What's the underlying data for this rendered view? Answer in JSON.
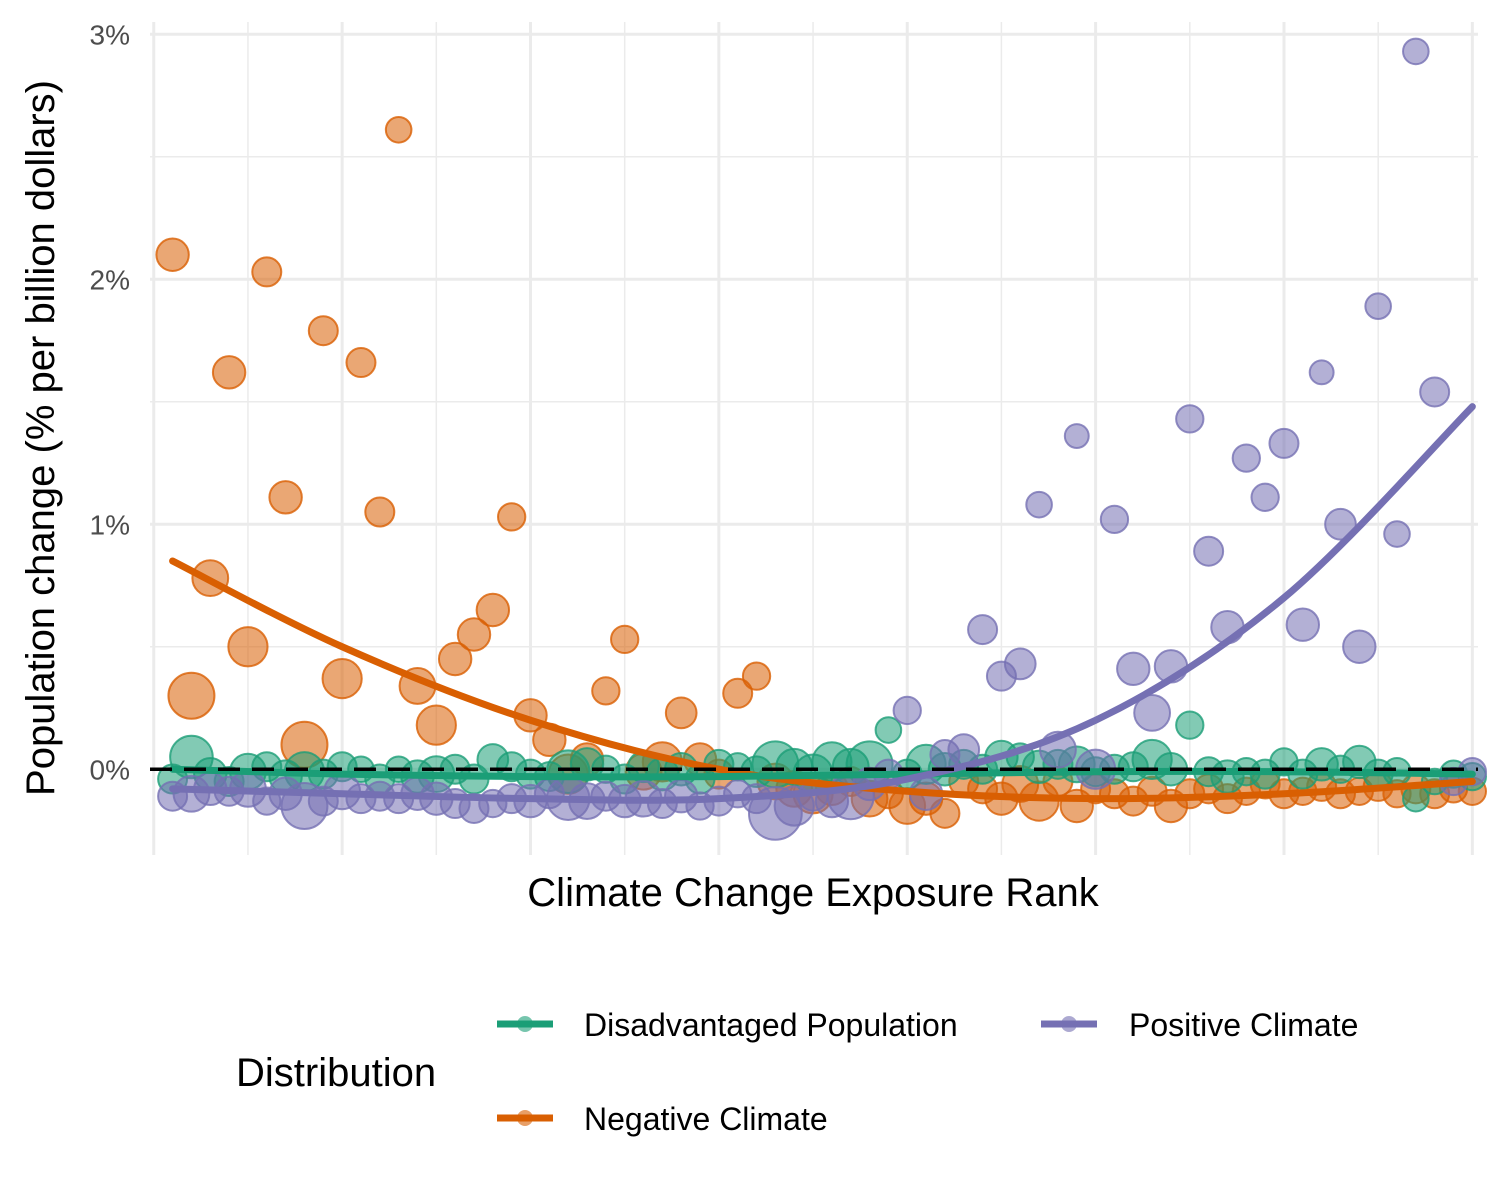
{
  "chart_data": {
    "type": "scatter",
    "title": "",
    "xlabel": "Climate Change Exposure Rank",
    "ylabel": "Population change (% per billion dollars)",
    "ylim": [
      -0.35,
      3.05
    ],
    "xlim": [
      -0.2,
      70.3
    ],
    "grid": true,
    "y_ticks": [
      0,
      1,
      2,
      3
    ],
    "y_tick_labels": [
      "0%",
      "1%",
      "2%",
      "3%"
    ],
    "reference_line": {
      "y": 0,
      "style": "dashed",
      "color": "#000000"
    },
    "legend": {
      "title": "Distribution",
      "position": "bottom",
      "entries": [
        {
          "label": "Disadvantaged Population",
          "color": "#1b9e77"
        },
        {
          "label": "Positive Climate",
          "color": "#7570b3"
        },
        {
          "label": "Negative Climate",
          "color": "#d95f02"
        }
      ]
    },
    "series": [
      {
        "name": "Negative Climate",
        "color": "#d95f02",
        "fit_curve": {
          "x": [
            1,
            10,
            20,
            30,
            40,
            50,
            60,
            70
          ],
          "y": [
            0.85,
            0.5,
            0.2,
            0.0,
            -0.09,
            -0.12,
            -0.1,
            -0.05
          ]
        },
        "points": [
          [
            1,
            2.1,
            0.6
          ],
          [
            3,
            0.78,
            0.7
          ],
          [
            4,
            1.62,
            0.6
          ],
          [
            5,
            0.5,
            0.8
          ],
          [
            6,
            2.03,
            0.5
          ],
          [
            2,
            0.3,
            1.0
          ],
          [
            7,
            1.11,
            0.6
          ],
          [
            8,
            0.1,
            1.0
          ],
          [
            9,
            1.79,
            0.5
          ],
          [
            10,
            0.37,
            0.8
          ],
          [
            11,
            1.66,
            0.5
          ],
          [
            12,
            1.05,
            0.5
          ],
          [
            13,
            2.61,
            0.4
          ],
          [
            14,
            0.34,
            0.7
          ],
          [
            15,
            0.18,
            0.8
          ],
          [
            16,
            0.45,
            0.6
          ],
          [
            17,
            0.55,
            0.6
          ],
          [
            18,
            0.65,
            0.6
          ],
          [
            19,
            1.03,
            0.45
          ],
          [
            20,
            0.22,
            0.6
          ],
          [
            21,
            0.12,
            0.6
          ],
          [
            22,
            -0.02,
            0.8
          ],
          [
            23,
            0.04,
            0.6
          ],
          [
            24,
            0.32,
            0.45
          ],
          [
            25,
            0.53,
            0.45
          ],
          [
            26,
            -0.01,
            0.7
          ],
          [
            27,
            0.03,
            0.8
          ],
          [
            28,
            0.23,
            0.55
          ],
          [
            29,
            0.04,
            0.6
          ],
          [
            30,
            -0.02,
            0.5
          ],
          [
            31,
            0.31,
            0.5
          ],
          [
            32,
            0.38,
            0.45
          ],
          [
            33,
            -0.05,
            0.7
          ],
          [
            34,
            -0.08,
            0.7
          ],
          [
            35,
            -0.1,
            0.8
          ],
          [
            36,
            -0.08,
            0.6
          ],
          [
            37,
            -0.05,
            0.5
          ],
          [
            38,
            -0.12,
            0.7
          ],
          [
            39,
            -0.1,
            0.5
          ],
          [
            40,
            -0.15,
            0.7
          ],
          [
            41,
            -0.12,
            0.6
          ],
          [
            42,
            -0.18,
            0.5
          ],
          [
            43,
            -0.05,
            0.5
          ],
          [
            44,
            -0.08,
            0.5
          ],
          [
            45,
            -0.12,
            0.6
          ],
          [
            46,
            -0.06,
            0.7
          ],
          [
            47,
            -0.13,
            0.8
          ],
          [
            48,
            -0.05,
            0.5
          ],
          [
            49,
            -0.15,
            0.6
          ],
          [
            50,
            -0.08,
            0.5
          ],
          [
            51,
            -0.1,
            0.5
          ],
          [
            52,
            -0.13,
            0.5
          ],
          [
            53,
            -0.09,
            0.5
          ],
          [
            54,
            -0.15,
            0.6
          ],
          [
            55,
            -0.1,
            0.5
          ],
          [
            56,
            -0.08,
            0.5
          ],
          [
            57,
            -0.12,
            0.5
          ],
          [
            58,
            -0.09,
            0.45
          ],
          [
            59,
            -0.06,
            0.5
          ],
          [
            60,
            -0.1,
            0.5
          ],
          [
            61,
            -0.09,
            0.45
          ],
          [
            62,
            -0.07,
            0.5
          ],
          [
            63,
            -0.1,
            0.5
          ],
          [
            64,
            -0.09,
            0.45
          ],
          [
            65,
            -0.07,
            0.5
          ],
          [
            66,
            -0.1,
            0.45
          ],
          [
            67,
            -0.08,
            0.5
          ],
          [
            68,
            -0.1,
            0.5
          ],
          [
            69,
            -0.08,
            0.45
          ],
          [
            70,
            -0.09,
            0.45
          ]
        ]
      },
      {
        "name": "Disadvantaged Population",
        "color": "#1b9e77",
        "fit_curve": {
          "x": [
            1,
            10,
            20,
            30,
            40,
            50,
            60,
            70
          ],
          "y": [
            0.0,
            -0.02,
            -0.03,
            -0.03,
            -0.02,
            -0.01,
            -0.01,
            -0.02
          ]
        },
        "points": [
          [
            1,
            -0.04,
            0.5
          ],
          [
            2,
            0.05,
            0.9
          ],
          [
            3,
            -0.02,
            0.6
          ],
          [
            4,
            -0.05,
            0.5
          ],
          [
            5,
            -0.01,
            0.7
          ],
          [
            6,
            0.01,
            0.5
          ],
          [
            7,
            -0.03,
            0.6
          ],
          [
            8,
            -0.01,
            0.8
          ],
          [
            9,
            -0.02,
            0.5
          ],
          [
            10,
            0.01,
            0.5
          ],
          [
            11,
            0.0,
            0.4
          ],
          [
            12,
            -0.04,
            0.5
          ],
          [
            13,
            0.0,
            0.4
          ],
          [
            14,
            -0.03,
            0.6
          ],
          [
            15,
            -0.02,
            0.7
          ],
          [
            16,
            0.0,
            0.5
          ],
          [
            17,
            -0.04,
            0.5
          ],
          [
            18,
            0.04,
            0.55
          ],
          [
            19,
            0.01,
            0.5
          ],
          [
            20,
            -0.02,
            0.5
          ],
          [
            21,
            -0.03,
            0.5
          ],
          [
            22,
            -0.01,
            0.9
          ],
          [
            23,
            0.02,
            0.6
          ],
          [
            24,
            0.0,
            0.45
          ],
          [
            25,
            -0.04,
            0.5
          ],
          [
            26,
            0.01,
            0.55
          ],
          [
            27,
            -0.02,
            0.6
          ],
          [
            28,
            0.0,
            0.6
          ],
          [
            29,
            -0.04,
            0.5
          ],
          [
            30,
            0.02,
            0.5
          ],
          [
            31,
            0.01,
            0.45
          ],
          [
            32,
            -0.01,
            0.55
          ],
          [
            33,
            0.02,
            1.0
          ],
          [
            34,
            0.01,
            0.7
          ],
          [
            35,
            -0.02,
            0.8
          ],
          [
            36,
            0.03,
            0.8
          ],
          [
            37,
            0.01,
            0.7
          ],
          [
            38,
            0.02,
            1.0
          ],
          [
            39,
            0.16,
            0.4
          ],
          [
            40,
            -0.02,
            0.5
          ],
          [
            41,
            0.02,
            0.8
          ],
          [
            42,
            0.0,
            0.6
          ],
          [
            43,
            0.02,
            0.5
          ],
          [
            44,
            0.0,
            0.5
          ],
          [
            45,
            0.05,
            0.6
          ],
          [
            46,
            0.05,
            0.45
          ],
          [
            47,
            0.01,
            0.6
          ],
          [
            48,
            0.02,
            0.5
          ],
          [
            49,
            0.02,
            0.7
          ],
          [
            50,
            -0.01,
            0.5
          ],
          [
            51,
            0.0,
            0.5
          ],
          [
            52,
            0.01,
            0.5
          ],
          [
            53,
            0.04,
            0.8
          ],
          [
            54,
            0.0,
            0.6
          ],
          [
            55,
            0.18,
            0.45
          ],
          [
            56,
            -0.01,
            0.5
          ],
          [
            57,
            -0.03,
            0.6
          ],
          [
            58,
            -0.01,
            0.45
          ],
          [
            59,
            -0.02,
            0.5
          ],
          [
            60,
            0.03,
            0.45
          ],
          [
            61,
            -0.02,
            0.5
          ],
          [
            62,
            0.02,
            0.6
          ],
          [
            63,
            0.0,
            0.45
          ],
          [
            64,
            0.03,
            0.6
          ],
          [
            65,
            -0.02,
            0.5
          ],
          [
            66,
            -0.01,
            0.45
          ],
          [
            67,
            -0.12,
            0.4
          ],
          [
            68,
            -0.05,
            0.4
          ],
          [
            69,
            -0.02,
            0.45
          ],
          [
            70,
            -0.03,
            0.45
          ]
        ]
      },
      {
        "name": "Positive Climate",
        "color": "#7570b3",
        "fit_curve": {
          "x": [
            1,
            10,
            20,
            30,
            40,
            50,
            60,
            70
          ],
          "y": [
            -0.08,
            -0.1,
            -0.12,
            -0.12,
            -0.04,
            0.2,
            0.7,
            1.48
          ]
        },
        "points": [
          [
            1,
            -0.11,
            0.5
          ],
          [
            2,
            -0.1,
            0.7
          ],
          [
            3,
            -0.08,
            0.6
          ],
          [
            4,
            -0.09,
            0.5
          ],
          [
            5,
            -0.08,
            0.7
          ],
          [
            6,
            -0.13,
            0.45
          ],
          [
            7,
            -0.1,
            0.6
          ],
          [
            8,
            -0.15,
            1.0
          ],
          [
            9,
            -0.13,
            0.5
          ],
          [
            10,
            -0.09,
            0.7
          ],
          [
            11,
            -0.12,
            0.5
          ],
          [
            12,
            -0.11,
            0.5
          ],
          [
            13,
            -0.12,
            0.5
          ],
          [
            14,
            -0.1,
            0.6
          ],
          [
            15,
            -0.12,
            0.6
          ],
          [
            16,
            -0.14,
            0.5
          ],
          [
            17,
            -0.16,
            0.5
          ],
          [
            18,
            -0.14,
            0.45
          ],
          [
            19,
            -0.12,
            0.5
          ],
          [
            20,
            -0.13,
            0.6
          ],
          [
            21,
            -0.1,
            0.5
          ],
          [
            22,
            -0.12,
            0.9
          ],
          [
            23,
            -0.13,
            0.7
          ],
          [
            24,
            -0.11,
            0.5
          ],
          [
            25,
            -0.13,
            0.6
          ],
          [
            26,
            -0.12,
            0.7
          ],
          [
            27,
            -0.14,
            0.5
          ],
          [
            28,
            -0.11,
            0.6
          ],
          [
            29,
            -0.15,
            0.45
          ],
          [
            30,
            -0.13,
            0.5
          ],
          [
            31,
            -0.1,
            0.45
          ],
          [
            32,
            -0.12,
            0.5
          ],
          [
            33,
            -0.18,
            1.2
          ],
          [
            34,
            -0.15,
            0.8
          ],
          [
            35,
            -0.11,
            0.5
          ],
          [
            36,
            -0.13,
            0.6
          ],
          [
            37,
            -0.11,
            1.0
          ],
          [
            38,
            -0.06,
            0.6
          ],
          [
            39,
            -0.02,
            0.5
          ],
          [
            40,
            0.24,
            0.45
          ],
          [
            41,
            -0.1,
            0.6
          ],
          [
            42,
            0.06,
            0.5
          ],
          [
            43,
            0.08,
            0.55
          ],
          [
            44,
            0.57,
            0.5
          ],
          [
            45,
            0.38,
            0.5
          ],
          [
            46,
            0.43,
            0.55
          ],
          [
            47,
            1.08,
            0.4
          ],
          [
            48,
            0.08,
            0.7
          ],
          [
            49,
            1.36,
            0.35
          ],
          [
            50,
            0.0,
            0.8
          ],
          [
            51,
            1.02,
            0.45
          ],
          [
            52,
            0.41,
            0.6
          ],
          [
            53,
            0.23,
            0.7
          ],
          [
            54,
            0.42,
            0.6
          ],
          [
            55,
            1.43,
            0.45
          ],
          [
            56,
            0.89,
            0.5
          ],
          [
            57,
            0.58,
            0.6
          ],
          [
            58,
            1.27,
            0.45
          ],
          [
            59,
            1.11,
            0.45
          ],
          [
            60,
            1.33,
            0.5
          ],
          [
            61,
            0.59,
            0.6
          ],
          [
            62,
            1.62,
            0.35
          ],
          [
            63,
            1.0,
            0.55
          ],
          [
            64,
            0.5,
            0.6
          ],
          [
            65,
            1.89,
            0.4
          ],
          [
            66,
            0.96,
            0.4
          ],
          [
            67,
            2.93,
            0.4
          ],
          [
            68,
            1.54,
            0.5
          ],
          [
            69,
            -0.05,
            0.45
          ],
          [
            70,
            -0.01,
            0.45
          ]
        ]
      }
    ]
  }
}
